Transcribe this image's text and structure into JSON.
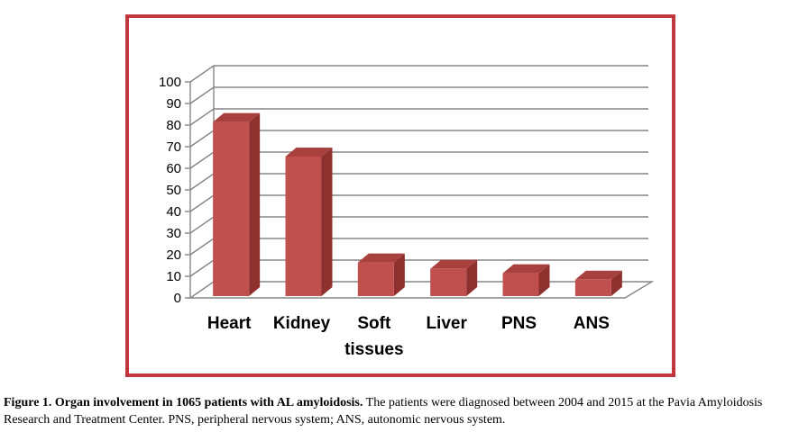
{
  "colors": {
    "frame": "#c0383e",
    "bar_front": "#c0504d",
    "bar_side": "#8e302d",
    "bar_top": "#a8413e",
    "grid": "#868686"
  },
  "chart_data": {
    "type": "bar",
    "style": "3d-column",
    "categories": [
      "Heart",
      "Kidney",
      "Soft tissues",
      "Liver",
      "PNS",
      "ANS"
    ],
    "category_lines": [
      [
        "Heart"
      ],
      [
        "Kidney"
      ],
      [
        "Soft",
        "tissues"
      ],
      [
        "Liver"
      ],
      [
        "PNS"
      ],
      [
        "ANS"
      ]
    ],
    "values": [
      81,
      65,
      16,
      13,
      11,
      8
    ],
    "ylim": [
      0,
      100
    ],
    "yticks": [
      0,
      10,
      20,
      30,
      40,
      50,
      60,
      70,
      80,
      90,
      100
    ],
    "grid": true,
    "legend": "none",
    "title": "",
    "xlabel": "",
    "ylabel": ""
  },
  "caption": {
    "title": "Figure 1. Organ involvement in 1065 patients with AL amyloidosis.",
    "text": " The patients were diagnosed between 2004 and 2015 at the Pavia Amyloidosis Research and Treatment Center. PNS, peripheral nervous system; ANS, autonomic nervous system."
  }
}
